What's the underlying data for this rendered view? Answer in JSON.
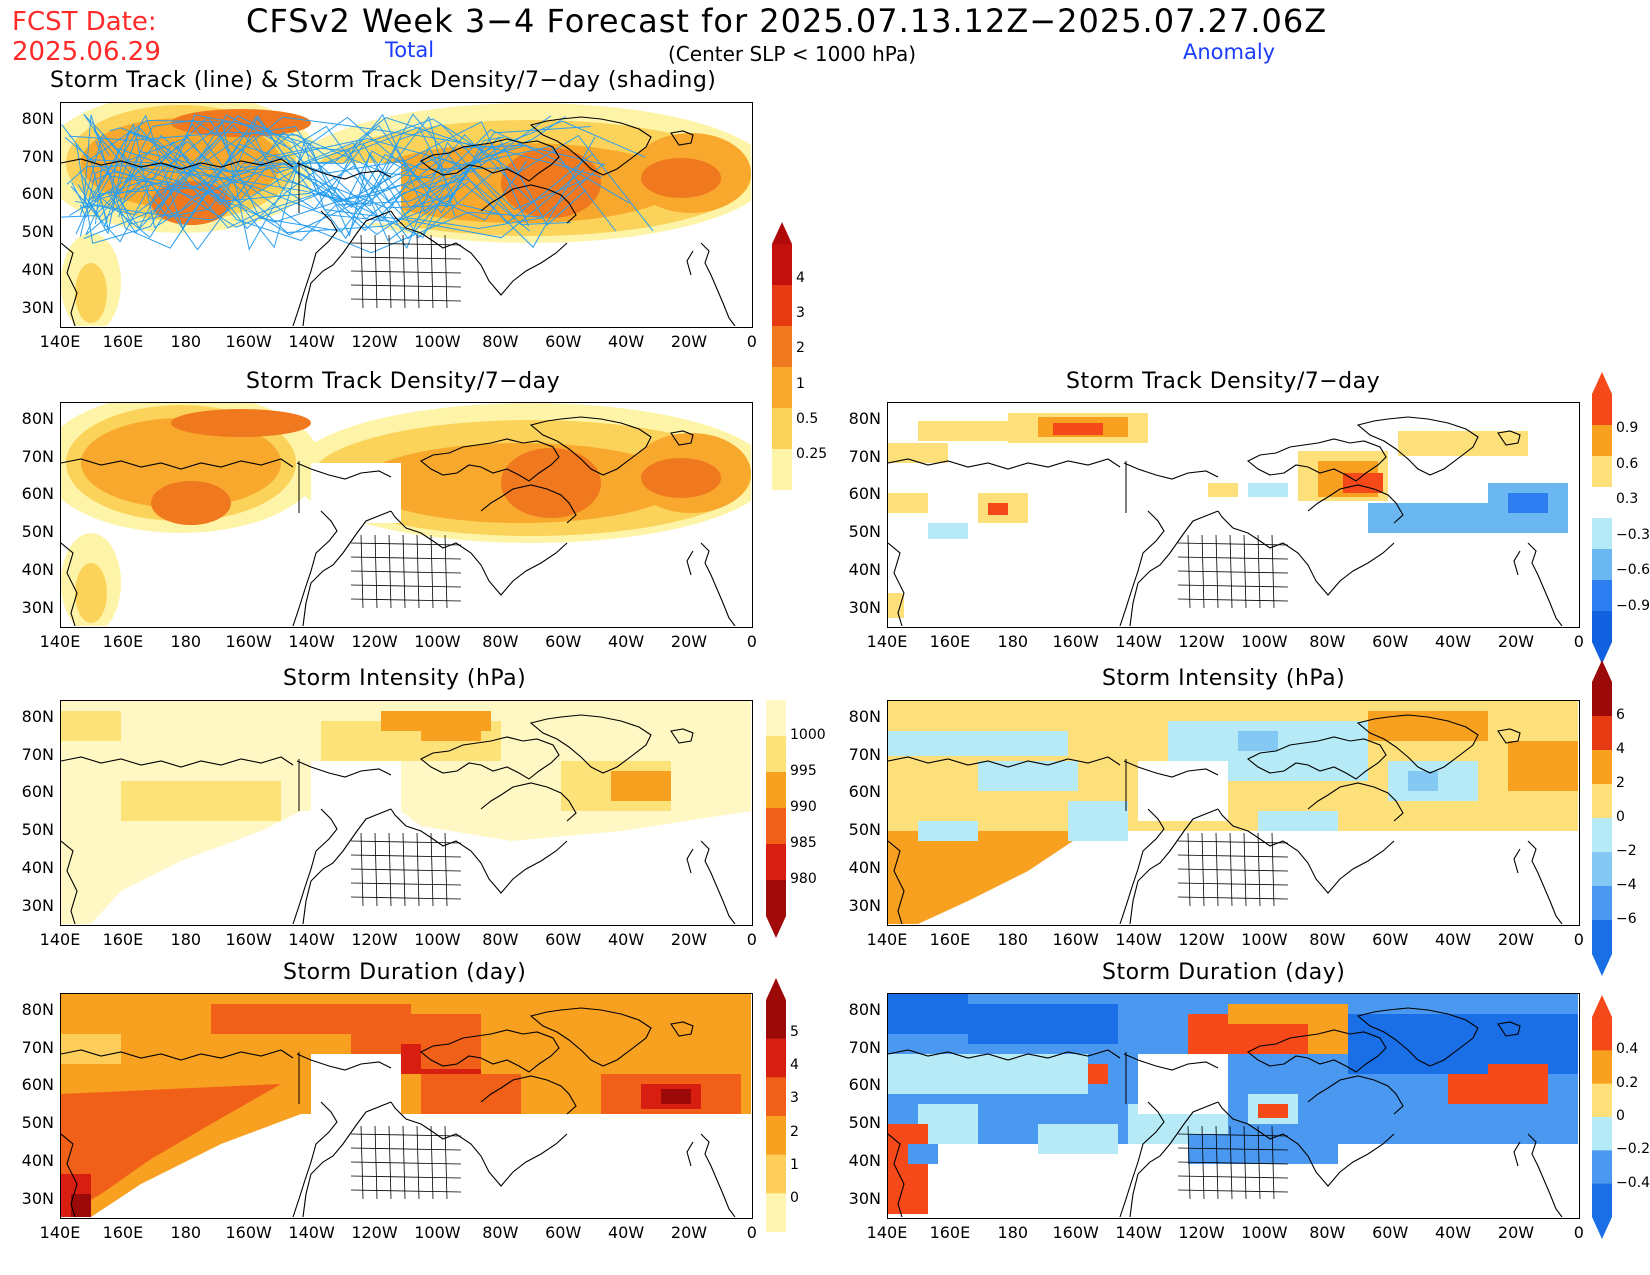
{
  "header": {
    "fcst_label": "FCST Date:",
    "fcst_date": "2025.06.29",
    "title": "CFSv2 Week 3−4 Forecast for 2025.07.13.12Z−2025.07.27.06Z",
    "total_label": "Total",
    "anomaly_label": "Anomaly",
    "criterion": "(Center SLP < 1000 hPa)"
  },
  "axes": {
    "lat_labels": [
      "80N",
      "70N",
      "60N",
      "50N",
      "40N",
      "30N"
    ],
    "lon_labels": [
      "140E",
      "160E",
      "180",
      "160W",
      "140W",
      "120W",
      "100W",
      "80W",
      "60W",
      "40W",
      "20W",
      "0"
    ]
  },
  "panels": [
    {
      "id": "p1",
      "title": "Storm Track (line) & Storm Track Density/7−day (shading)"
    },
    {
      "id": "p2",
      "title": "Storm Track Density/7−day"
    },
    {
      "id": "p3",
      "title": "Storm Track Density/7−day"
    },
    {
      "id": "p4",
      "title": "Storm Intensity (hPa)"
    },
    {
      "id": "p5",
      "title": "Storm Intensity (hPa)"
    },
    {
      "id": "p6",
      "title": "Storm Duration (day)"
    },
    {
      "id": "p7",
      "title": "Storm Duration (day)"
    }
  ],
  "colorbars": {
    "density_total": {
      "labels": [
        "4",
        "3",
        "2",
        "1",
        "0.5",
        "0.25"
      ],
      "colors": [
        "#c4100c",
        "#e53a12",
        "#f0781e",
        "#f8a82c",
        "#fcd35a",
        "#fdf4a8"
      ]
    },
    "density_anom": {
      "labels": [
        "0.9",
        "0.6",
        "0.3",
        "−0.3",
        "−0.6",
        "−0.9"
      ],
      "colors": [
        "#f5491a",
        "#f8a020",
        "#fde07a",
        "#ffffff",
        "#b6eaf6",
        "#6ab7f2",
        "#2c7ef0",
        "#1060e0"
      ]
    },
    "intensity_total": {
      "labels": [
        "1000",
        "995",
        "990",
        "985",
        "980"
      ],
      "colors": [
        "#fff8c4",
        "#fde27a",
        "#f8a020",
        "#f06018",
        "#d81e10",
        "#a00a08"
      ]
    },
    "intensity_anom": {
      "labels": [
        "6",
        "4",
        "2",
        "0",
        "−2",
        "−4",
        "−6"
      ],
      "colors": [
        "#9b0a08",
        "#e53a12",
        "#f8a020",
        "#fde07a",
        "#b6eaf6",
        "#84c8f4",
        "#4a98f0",
        "#1a6ee6"
      ]
    },
    "duration_total": {
      "labels": [
        "5",
        "4",
        "3",
        "2",
        "1",
        "0"
      ],
      "colors": [
        "#9b0a08",
        "#d81e10",
        "#f06018",
        "#f8a020",
        "#fdcf5a",
        "#fff4b0"
      ]
    },
    "duration_anom": {
      "labels": [
        "0.4",
        "0.2",
        "0",
        "−0.2",
        "−0.4"
      ],
      "colors": [
        "#f5491a",
        "#f8a020",
        "#fde07a",
        "#b6eaf6",
        "#4a98f0",
        "#1a6ee6"
      ]
    }
  }
}
